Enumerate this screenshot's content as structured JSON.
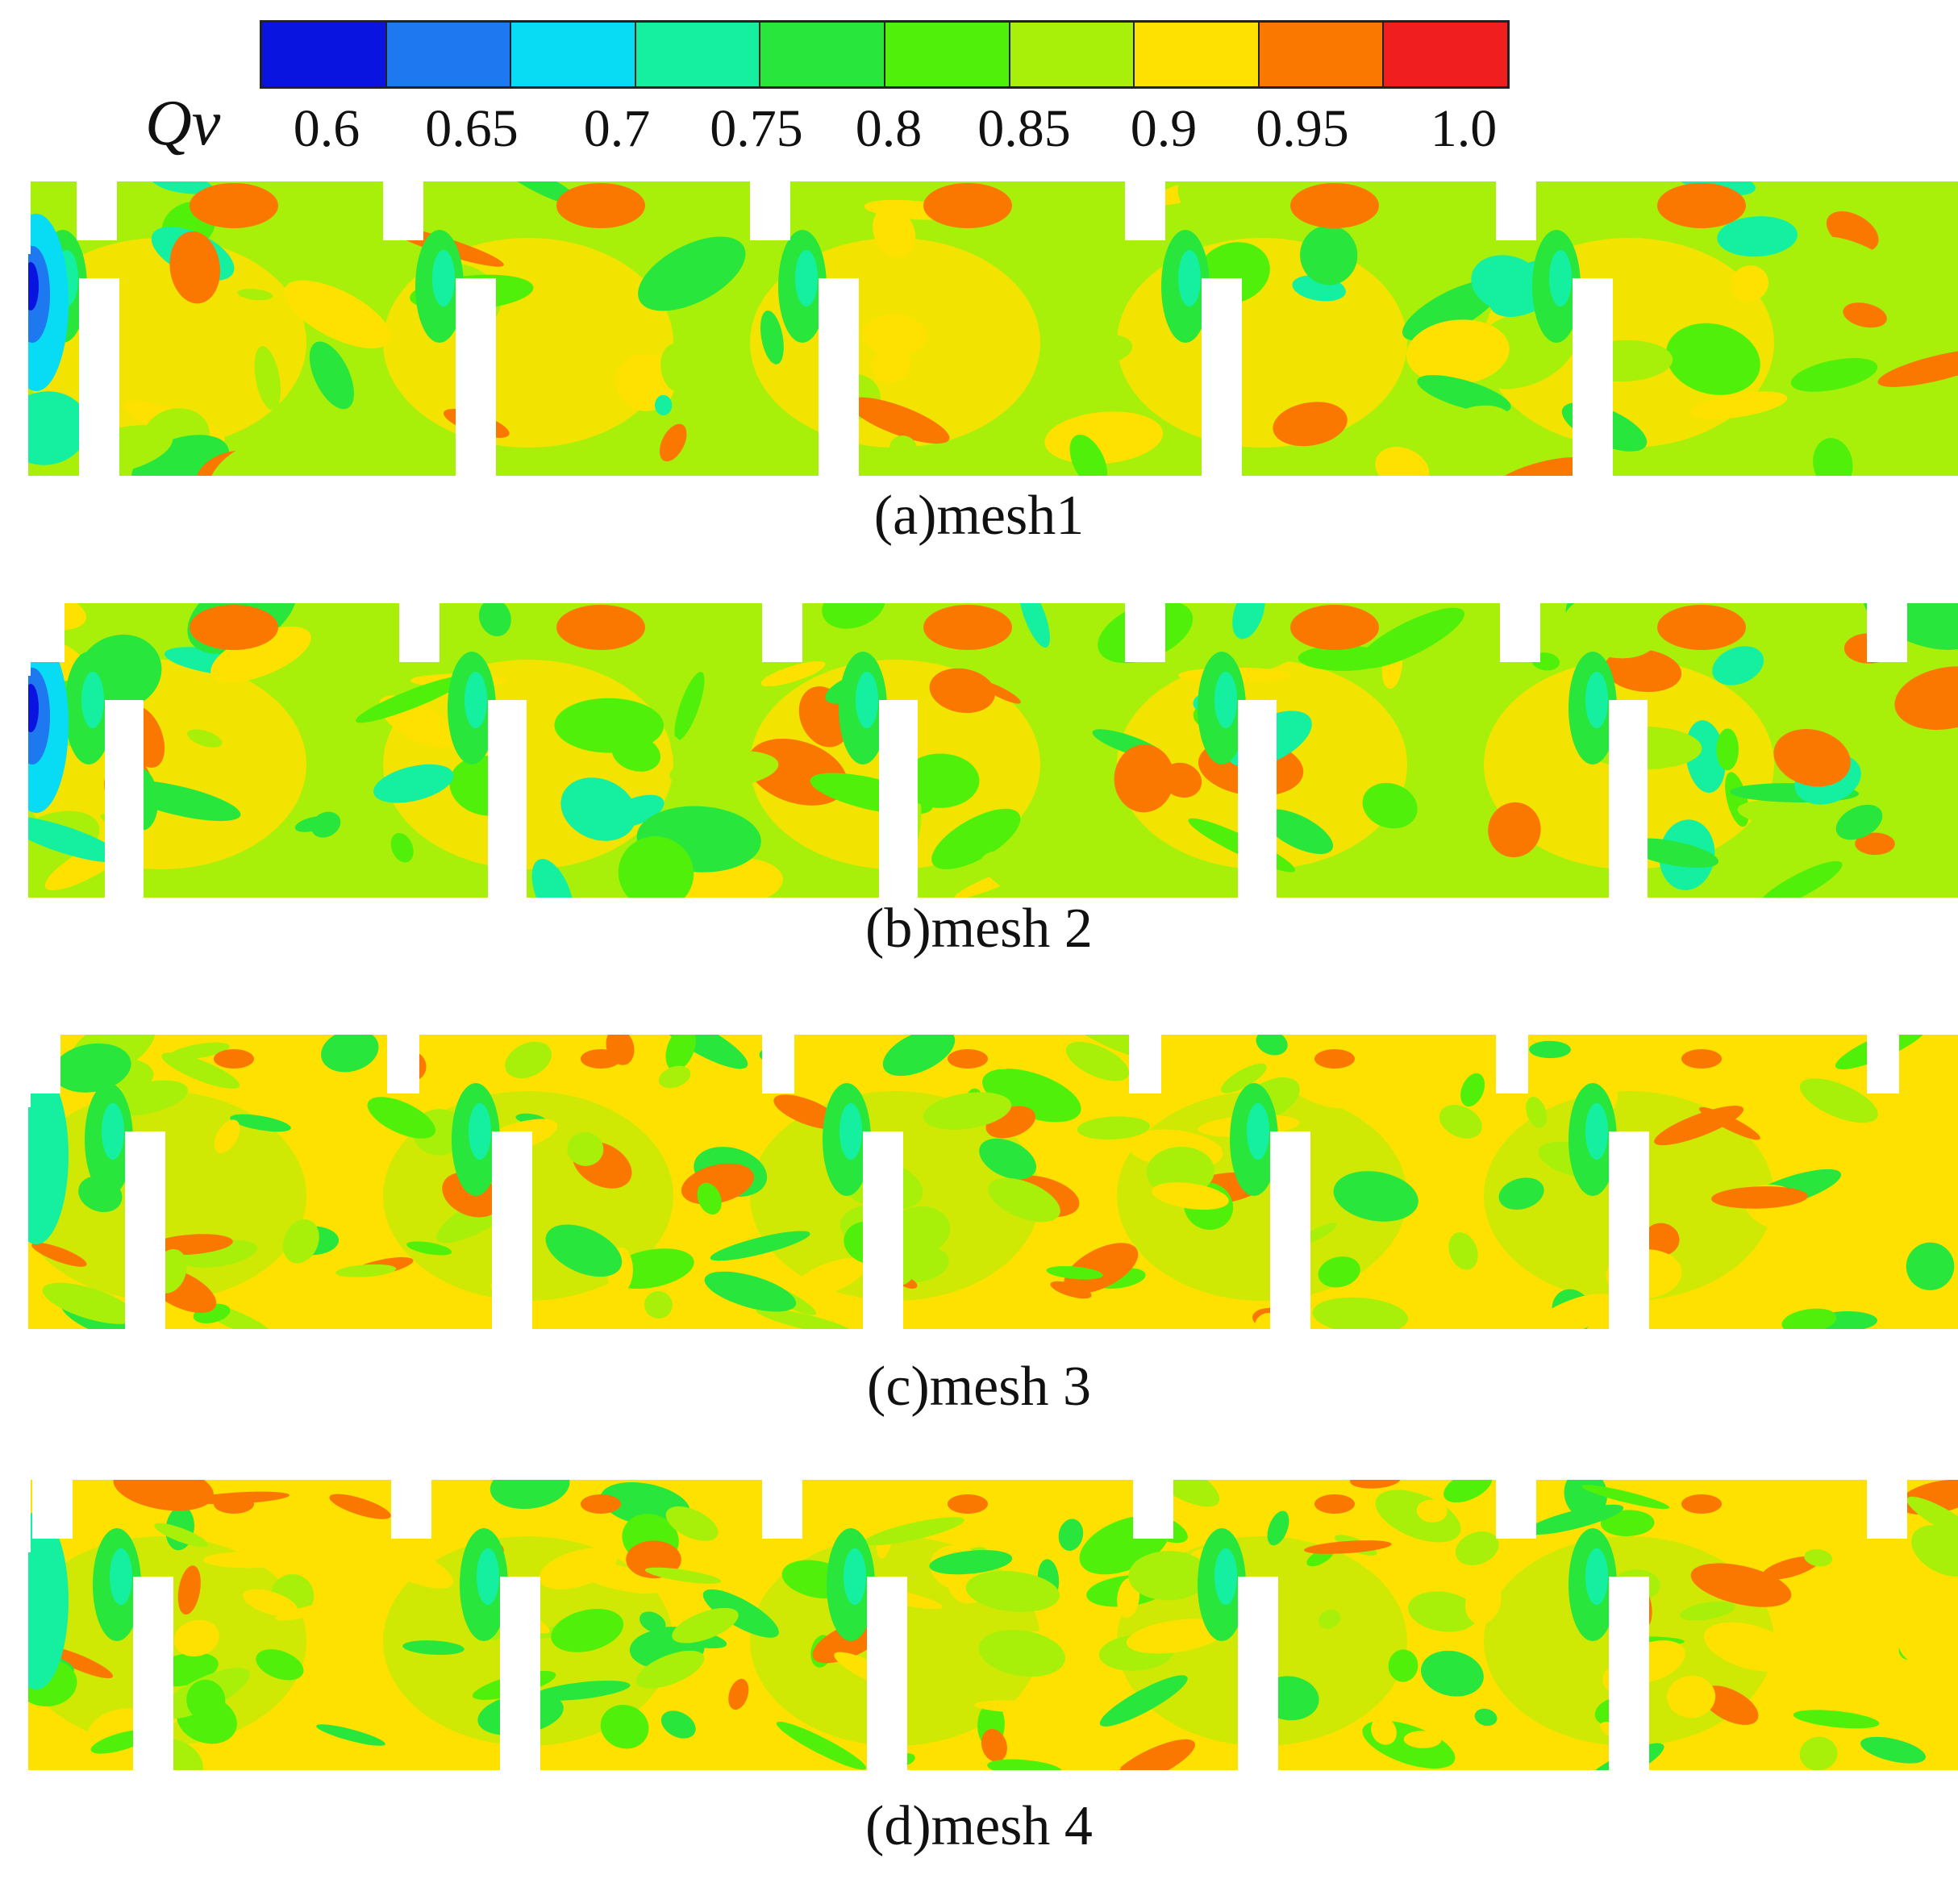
{
  "legend": {
    "symbol": "Qv",
    "ticks": [
      "0.6",
      "0.65",
      "0.7",
      "0.75",
      "0.8",
      "0.85",
      "0.9",
      "0.95",
      "1.0"
    ],
    "colors": [
      "#0a14e0",
      "#1e78f0",
      "#08dcf5",
      "#14f0a0",
      "#28e63c",
      "#50f00a",
      "#a8f00a",
      "#ffe100",
      "#fa7800",
      "#f01e1e"
    ]
  },
  "panels": [
    {
      "label": "(a)mesh1",
      "key": "mesh1"
    },
    {
      "label": "(b)mesh 2",
      "key": "mesh2"
    },
    {
      "label": "(c)mesh 3",
      "key": "mesh3"
    },
    {
      "label": "(d)mesh 4",
      "key": "mesh4"
    }
  ],
  "palette": {
    "background": "#ffffff",
    "text": "#111111"
  }
}
